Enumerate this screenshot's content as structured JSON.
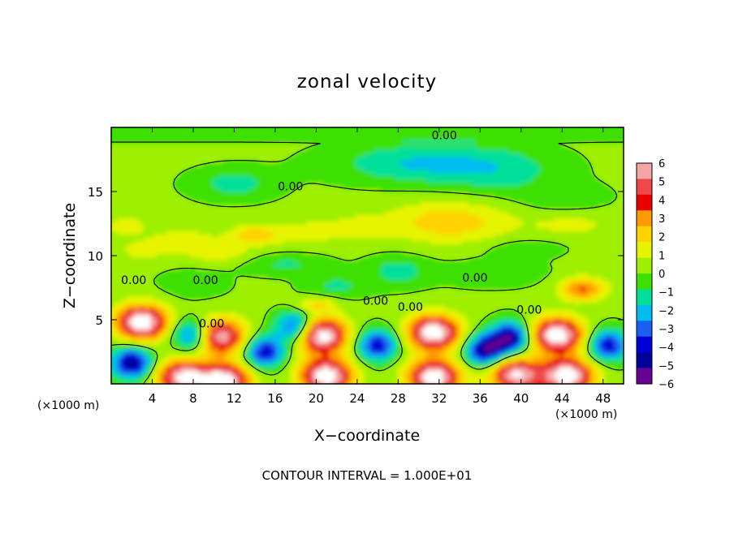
{
  "chart_data": {
    "type": "heatmap",
    "title": "zonal velocity",
    "xlabel": "X−coordinate",
    "ylabel": "Z−coordinate",
    "x_unit_label": "(×1000 m)",
    "footer": "CONTOUR INTERVAL = 1.000E+01",
    "xlim": [
      0,
      50
    ],
    "ylim": [
      0,
      20
    ],
    "x_ticks": [
      "4",
      "8",
      "12",
      "16",
      "20",
      "24",
      "28",
      "32",
      "36",
      "40",
      "44",
      "48"
    ],
    "x_tick_values": [
      4,
      8,
      12,
      16,
      20,
      24,
      28,
      32,
      36,
      40,
      44,
      48
    ],
    "y_ticks": [
      "5",
      "10",
      "15"
    ],
    "y_tick_values": [
      5,
      10,
      15
    ],
    "colorbar": {
      "labels": [
        "6",
        "5",
        "4",
        "3",
        "2",
        "1",
        "0",
        "−1",
        "−2",
        "−3",
        "−4",
        "−5",
        "−6"
      ],
      "values": [
        6,
        5,
        4,
        3,
        2,
        1,
        0,
        -1,
        -2,
        -3,
        -4,
        -5,
        -6
      ],
      "colors": [
        "#f4a5a5",
        "#f04848",
        "#e80000",
        "#ff9a00",
        "#ffd200",
        "#e6f400",
        "#9ef000",
        "#3de000",
        "#00e09a",
        "#00bcf0",
        "#1a5ff0",
        "#0000d8",
        "#00009a",
        "#6a0096"
      ],
      "over_color": "#ffffff"
    },
    "contour_labels": [
      {
        "text": "0.00",
        "x": 32.5,
        "z": 19.4
      },
      {
        "text": "0.00",
        "x": 17.5,
        "z": 15.4
      },
      {
        "text": "0.00",
        "x": 2.2,
        "z": 8.1
      },
      {
        "text": "0.00",
        "x": 9.2,
        "z": 8.1
      },
      {
        "text": "0.00",
        "x": 9.8,
        "z": 4.7
      },
      {
        "text": "0.00",
        "x": 25.8,
        "z": 6.5
      },
      {
        "text": "0.00",
        "x": 29.2,
        "z": 6.0
      },
      {
        "text": "0.00",
        "x": 35.5,
        "z": 8.3
      },
      {
        "text": "0.00",
        "x": 40.8,
        "z": 5.8
      }
    ],
    "features": {
      "warm_cores_near_surface": [
        {
          "x": 3.0,
          "z": 4.8,
          "peak": 8
        },
        {
          "x": 10.5,
          "z": 3.7,
          "peak": 7
        },
        {
          "x": 20.5,
          "z": 3.8,
          "peak": 8
        },
        {
          "x": 31.5,
          "z": 4.0,
          "peak": 8
        },
        {
          "x": 43.5,
          "z": 3.8,
          "peak": 8
        },
        {
          "x": 7.0,
          "z": 0.5,
          "peak": 7
        },
        {
          "x": 11.0,
          "z": 0.2,
          "peak": 8
        },
        {
          "x": 21.0,
          "z": 0.6,
          "peak": 8
        },
        {
          "x": 31.5,
          "z": 0.5,
          "peak": 8
        },
        {
          "x": 39.5,
          "z": 0.7,
          "peak": 7
        },
        {
          "x": 44.5,
          "z": 0.6,
          "peak": 8
        }
      ],
      "cold_cores_near_surface": [
        {
          "x": 2.0,
          "z": 1.6,
          "peak": -6
        },
        {
          "x": 8.0,
          "z": 3.8,
          "peak": -5
        },
        {
          "x": 15.0,
          "z": 2.5,
          "peak": -5
        },
        {
          "x": 18.0,
          "z": 4.4,
          "peak": -5
        },
        {
          "x": 26.0,
          "z": 3.0,
          "peak": -5
        },
        {
          "x": 36.5,
          "z": 2.6,
          "peak": -6
        },
        {
          "x": 39.0,
          "z": 3.6,
          "peak": -6
        },
        {
          "x": 48.5,
          "z": 3.0,
          "peak": -5
        }
      ],
      "upper_maximum": {
        "x": 33.0,
        "z": 12.6,
        "peak": 2.5
      }
    }
  }
}
